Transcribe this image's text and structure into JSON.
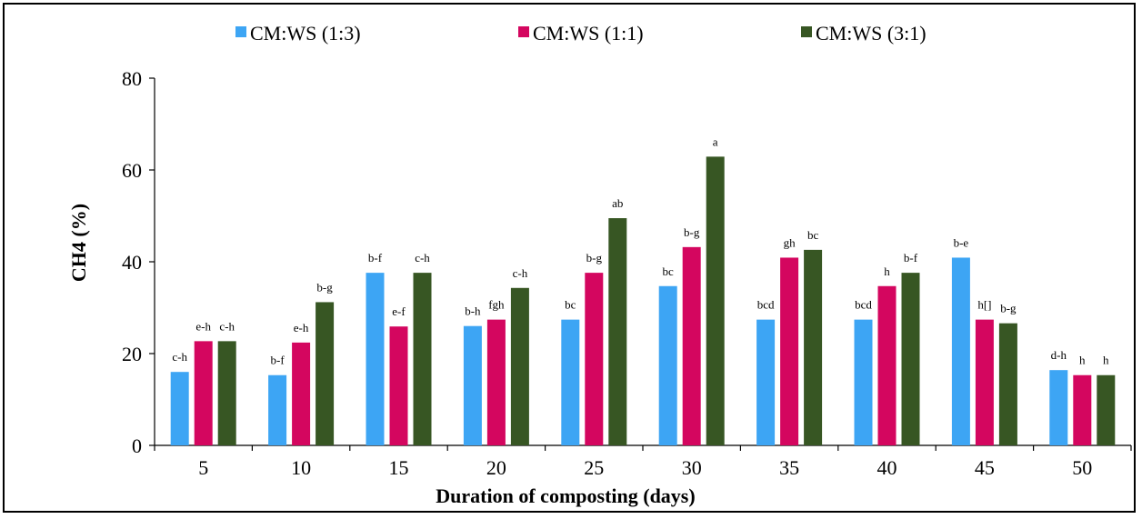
{
  "chart_data": {
    "type": "bar",
    "title": "",
    "xlabel": "Duration of composting (days)",
    "ylabel": "CH4 (%)",
    "ylim": [
      0,
      80
    ],
    "yticks": [
      0,
      20,
      40,
      60,
      80
    ],
    "grid": false,
    "legend_position": "top",
    "categories": [
      "5",
      "10",
      "15",
      "20",
      "25",
      "30",
      "35",
      "40",
      "45",
      "50"
    ],
    "series": [
      {
        "name": "CM:WS (1:3)",
        "color": "#3DA5F4",
        "values": [
          16,
          15.3,
          37.6,
          26,
          27.4,
          34.7,
          27.4,
          27.4,
          40.9,
          16.4
        ],
        "labels": [
          "c-h",
          "b-f",
          "b-f",
          "b-h",
          "bc",
          "bc",
          "bcd",
          "bcd",
          "b-e",
          "d-h"
        ]
      },
      {
        "name": "CM:WS (1:1)",
        "color": "#D4065F",
        "values": [
          22.7,
          22.4,
          25.9,
          27.4,
          37.6,
          43.2,
          40.9,
          34.7,
          27.4,
          15.3
        ],
        "labels": [
          "e-h",
          "e-h",
          "e-f",
          "fgh",
          "b-g",
          "b-g",
          "gh",
          "h",
          "h[]",
          "h"
        ]
      },
      {
        "name": "CM:WS (3:1)",
        "color": "#375623",
        "values": [
          22.7,
          31.2,
          37.6,
          34.3,
          49.5,
          62.9,
          42.6,
          37.6,
          26.6,
          15.3
        ],
        "labels": [
          "c-h",
          "b-g",
          "c-h",
          "c-h",
          "ab",
          "a",
          "bc",
          "b-f",
          "b-g",
          "h"
        ]
      }
    ]
  }
}
